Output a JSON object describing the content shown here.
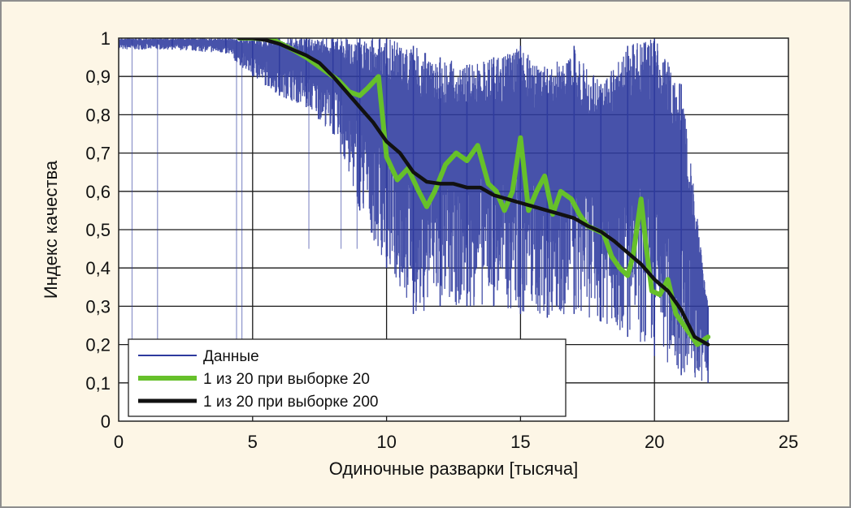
{
  "chart_data": {
    "type": "line",
    "xlabel": "Одиночные разварки [тысяча]",
    "ylabel": "Индекс качества",
    "xlim": [
      0,
      25
    ],
    "ylim": [
      0,
      1
    ],
    "x_ticks": [
      "0",
      "5",
      "10",
      "15",
      "20",
      "25"
    ],
    "y_ticks": [
      "0",
      "0,1",
      "0,2",
      "0,3",
      "0,4",
      "0,5",
      "0,6",
      "0,7",
      "0,8",
      "0,9",
      "1"
    ],
    "grid": true,
    "legend_position": "bottom-left",
    "series": [
      {
        "name": "Данные",
        "color": "#2e3a9e",
        "style": "noisy-band",
        "x": [
          0,
          2,
          4,
          5,
          6,
          7,
          8,
          9,
          10,
          11,
          12,
          13,
          14,
          15,
          16,
          17,
          18,
          19,
          20,
          21,
          22
        ],
        "upper": [
          1.0,
          1.0,
          1.0,
          1.0,
          1.0,
          1.0,
          1.0,
          1.0,
          1.0,
          0.98,
          0.95,
          0.93,
          0.95,
          0.98,
          0.92,
          0.98,
          0.88,
          0.98,
          1.0,
          0.88,
          0.3
        ],
        "lower": [
          0.97,
          0.97,
          0.96,
          0.9,
          0.85,
          0.82,
          0.75,
          0.55,
          0.4,
          0.28,
          0.3,
          0.3,
          0.3,
          0.28,
          0.27,
          0.28,
          0.26,
          0.22,
          0.17,
          0.12,
          0.1
        ]
      },
      {
        "name": "1 из 20 при выборке 20",
        "color": "#66c02a",
        "x": [
          4.5,
          5,
          5.8,
          6.5,
          7,
          7.6,
          8.2,
          8.6,
          9,
          9.3,
          9.7,
          10,
          10.4,
          10.8,
          11.2,
          11.5,
          11.8,
          12.2,
          12.6,
          13,
          13.4,
          13.8,
          14.1,
          14.4,
          14.7,
          15,
          15.3,
          15.6,
          15.9,
          16.2,
          16.5,
          16.9,
          17.2,
          17.5,
          17.8,
          18.1,
          18.4,
          18.7,
          19,
          19.2,
          19.5,
          19.7,
          19.9,
          20.2,
          20.5,
          20.8,
          21.2,
          21.6,
          22
        ],
        "y": [
          1.0,
          1.0,
          0.995,
          0.97,
          0.95,
          0.92,
          0.89,
          0.86,
          0.85,
          0.87,
          0.9,
          0.69,
          0.63,
          0.66,
          0.6,
          0.56,
          0.6,
          0.67,
          0.7,
          0.68,
          0.72,
          0.62,
          0.6,
          0.55,
          0.6,
          0.74,
          0.55,
          0.6,
          0.64,
          0.54,
          0.6,
          0.58,
          0.54,
          0.51,
          0.5,
          0.49,
          0.43,
          0.4,
          0.38,
          0.43,
          0.58,
          0.45,
          0.34,
          0.33,
          0.37,
          0.28,
          0.24,
          0.2,
          0.22
        ]
      },
      {
        "name": "1 из 20 при выборке 200",
        "color": "#111111",
        "x": [
          4.5,
          5,
          5.5,
          6,
          6.5,
          7,
          7.5,
          8,
          8.5,
          9,
          9.5,
          10,
          10.5,
          11,
          11.5,
          12,
          12.5,
          13,
          13.5,
          14,
          14.5,
          15,
          15.5,
          16,
          16.5,
          17,
          17.5,
          18,
          18.5,
          19,
          19.5,
          20,
          20.5,
          21,
          21.5,
          22
        ],
        "y": [
          1.0,
          1.0,
          0.995,
          0.985,
          0.97,
          0.955,
          0.935,
          0.9,
          0.86,
          0.82,
          0.78,
          0.73,
          0.7,
          0.65,
          0.625,
          0.62,
          0.62,
          0.61,
          0.61,
          0.59,
          0.58,
          0.57,
          0.56,
          0.55,
          0.54,
          0.53,
          0.51,
          0.495,
          0.47,
          0.44,
          0.41,
          0.37,
          0.34,
          0.29,
          0.22,
          0.2
        ]
      }
    ]
  }
}
